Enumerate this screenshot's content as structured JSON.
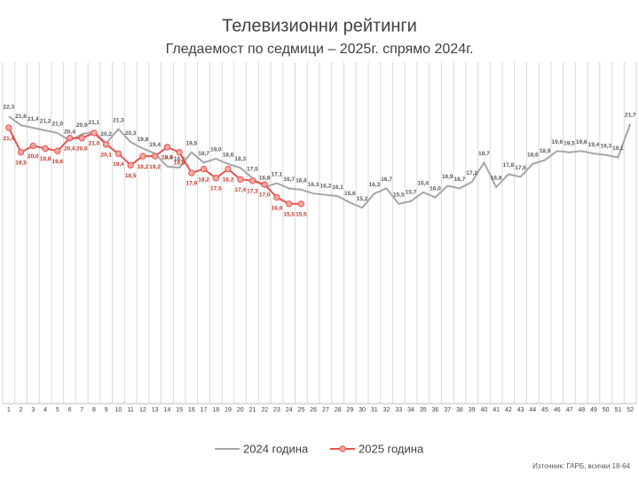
{
  "chart_data": {
    "type": "line",
    "title": "Телевизионни рейтинги",
    "subtitle": "Гледаемост по седмици – 2025г. спрямо 2024г.",
    "source": "Източник: ГАРБ, всички 18-64",
    "categories": [
      "1",
      "2",
      "3",
      "4",
      "5",
      "6",
      "7",
      "8",
      "9",
      "10",
      "11",
      "12",
      "13",
      "14",
      "15",
      "16",
      "17",
      "18",
      "19",
      "20",
      "21",
      "22",
      "23",
      "24",
      "25",
      "26",
      "27",
      "28",
      "29",
      "30",
      "31",
      "32",
      "33",
      "34",
      "35",
      "36",
      "37",
      "38",
      "39",
      "40",
      "41",
      "42",
      "43",
      "44",
      "45",
      "46",
      "47",
      "48",
      "49",
      "50",
      "51",
      "52"
    ],
    "ylim": [
      0,
      26.5
    ],
    "grid": true,
    "legend": "bottom",
    "series": [
      {
        "name": "2024 година",
        "color": "#a6a6a6",
        "marker": false,
        "values": [
          22.3,
          21.6,
          21.4,
          21.2,
          21.0,
          20.4,
          20.9,
          21.1,
          20.2,
          21.3,
          20.3,
          19.8,
          19.4,
          18.4,
          18.3,
          19.5,
          18.7,
          19.0,
          18.6,
          18.3,
          17.5,
          16.8,
          17.1,
          16.7,
          16.6,
          16.3,
          16.2,
          16.1,
          15.6,
          15.2,
          16.3,
          16.7,
          15.5,
          15.7,
          16.4,
          16.0,
          16.9,
          16.7,
          17.2,
          18.7,
          16.8,
          17.8,
          17.6,
          18.6,
          18.9,
          19.6,
          19.5,
          19.6,
          19.4,
          19.3,
          19.1,
          21.7
        ],
        "value_labels": [
          "22,3",
          "21,6",
          "21,4",
          "21,2",
          "21,0",
          "20,4",
          "20,9",
          "21,1",
          "20,2",
          "21,3",
          "20,3",
          "19,8",
          "19,4",
          "18,4",
          "18,3",
          "19,5",
          "18,7",
          "19,0",
          "18,6",
          "18,3",
          "17,5",
          "16,8",
          "17,1",
          "16,7",
          "16,6",
          "16,3",
          "16,2",
          "16,1",
          "15,6",
          "15,2",
          "16,3",
          "16,7",
          "15,5",
          "15,7",
          "16,4",
          "16,0",
          "16,9",
          "16,7",
          "17,2",
          "18,7",
          "16,8",
          "17,8",
          "17,6",
          "18,6",
          "18,9",
          "19,6",
          "19,5",
          "19,6",
          "19,4",
          "19,3",
          "19,1",
          "21,7"
        ]
      },
      {
        "name": "2025 година",
        "color": "#e8534f",
        "marker": true,
        "values": [
          21.4,
          19.5,
          20.0,
          19.8,
          19.6,
          20.6,
          20.6,
          21.0,
          20.1,
          19.4,
          18.5,
          19.2,
          19.2,
          19.9,
          19.5,
          17.9,
          18.2,
          17.5,
          18.2,
          17.4,
          17.3,
          17.0,
          16.0,
          15.5,
          15.5,
          null,
          null,
          null,
          null,
          null,
          null,
          null,
          null,
          null,
          null,
          null,
          null,
          null,
          null,
          null,
          null,
          null,
          null,
          null,
          null,
          null,
          null,
          null,
          null,
          null,
          null,
          null
        ],
        "value_labels": [
          "21,4",
          "19,5",
          "20,0",
          "19,8",
          "19,6",
          "20,6",
          "20,6",
          "21,0",
          "20,1",
          "19,4",
          "18,5",
          "19,2",
          "19,2",
          "19,9",
          "19,5",
          "17,9",
          "18,2",
          "17,5",
          "18,2",
          "17,4",
          "17,3",
          "17,0",
          "16,0",
          "15,5",
          "15,5",
          null,
          null,
          null,
          null,
          null,
          null,
          null,
          null,
          null,
          null,
          null,
          null,
          null,
          null,
          null,
          null,
          null,
          null,
          null,
          null,
          null,
          null,
          null,
          null,
          null,
          null,
          null
        ]
      }
    ]
  }
}
